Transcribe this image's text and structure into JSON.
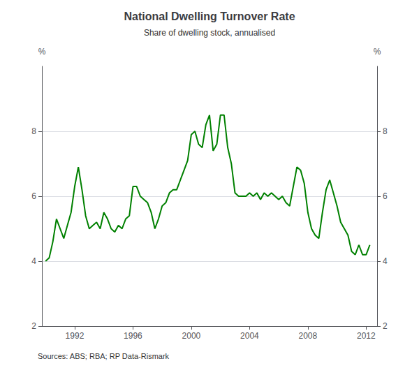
{
  "chart_data": {
    "type": "line",
    "title": "National Dwelling Turnover Rate",
    "subtitle": "Share of dwelling stock, annualised",
    "ylabel": "%",
    "y2label": "%",
    "annotations": [
      "Sources: ABS; RBA; RP Data-Rismark"
    ],
    "color": "#008000",
    "grid": true,
    "xlim": [
      1989.75,
      2012.75
    ],
    "xticks": [
      1992,
      1996,
      2000,
      2004,
      2008,
      2012
    ],
    "ylim": [
      2,
      10
    ],
    "yticks": [
      2,
      4,
      6,
      8
    ],
    "y2lim": [
      2,
      10
    ],
    "y2ticks": [
      2,
      4,
      6,
      8
    ],
    "x": [
      1990.0,
      1990.25,
      1990.5,
      1990.75,
      1991.0,
      1991.25,
      1991.5,
      1991.75,
      1992.0,
      1992.25,
      1992.5,
      1992.75,
      1993.0,
      1993.25,
      1993.5,
      1993.75,
      1994.0,
      1994.25,
      1994.5,
      1994.75,
      1995.0,
      1995.25,
      1995.5,
      1995.75,
      1996.0,
      1996.25,
      1996.5,
      1996.75,
      1997.0,
      1997.25,
      1997.5,
      1997.75,
      1998.0,
      1998.25,
      1998.5,
      1998.75,
      1999.0,
      1999.25,
      1999.5,
      1999.75,
      2000.0,
      2000.25,
      2000.5,
      2000.75,
      2001.0,
      2001.25,
      2001.5,
      2001.75,
      2002.0,
      2002.25,
      2002.5,
      2002.75,
      2003.0,
      2003.25,
      2003.5,
      2003.75,
      2004.0,
      2004.25,
      2004.5,
      2004.75,
      2005.0,
      2005.25,
      2005.5,
      2005.75,
      2006.0,
      2006.25,
      2006.5,
      2006.75,
      2007.0,
      2007.25,
      2007.5,
      2007.75,
      2008.0,
      2008.25,
      2008.5,
      2008.75,
      2009.0,
      2009.25,
      2009.5,
      2009.75,
      2010.0,
      2010.25,
      2010.5,
      2010.75,
      2011.0,
      2011.25,
      2011.5,
      2011.75,
      2012.0,
      2012.25
    ],
    "values": [
      4.0,
      4.1,
      4.6,
      5.3,
      5.0,
      4.7,
      5.1,
      5.5,
      6.3,
      6.9,
      6.2,
      5.4,
      5.0,
      5.1,
      5.2,
      5.0,
      5.5,
      5.3,
      5.0,
      4.9,
      5.1,
      5.0,
      5.3,
      5.4,
      6.3,
      6.3,
      6.0,
      5.9,
      5.8,
      5.5,
      5.0,
      5.3,
      5.7,
      5.8,
      6.1,
      6.2,
      6.2,
      6.5,
      6.8,
      7.1,
      7.9,
      8.0,
      7.6,
      7.5,
      8.2,
      8.5,
      7.4,
      7.6,
      8.5,
      8.5,
      7.5,
      7.0,
      6.1,
      6.0,
      6.0,
      6.0,
      6.1,
      6.0,
      6.1,
      5.9,
      6.1,
      6.0,
      6.1,
      6.0,
      5.9,
      6.0,
      5.8,
      5.7,
      6.3,
      6.9,
      6.8,
      6.4,
      5.5,
      5.0,
      4.8,
      4.7,
      5.5,
      6.2,
      6.5,
      6.1,
      5.7,
      5.2,
      5.0,
      4.8,
      4.3,
      4.2,
      4.5,
      4.2,
      4.2,
      4.5
    ]
  }
}
